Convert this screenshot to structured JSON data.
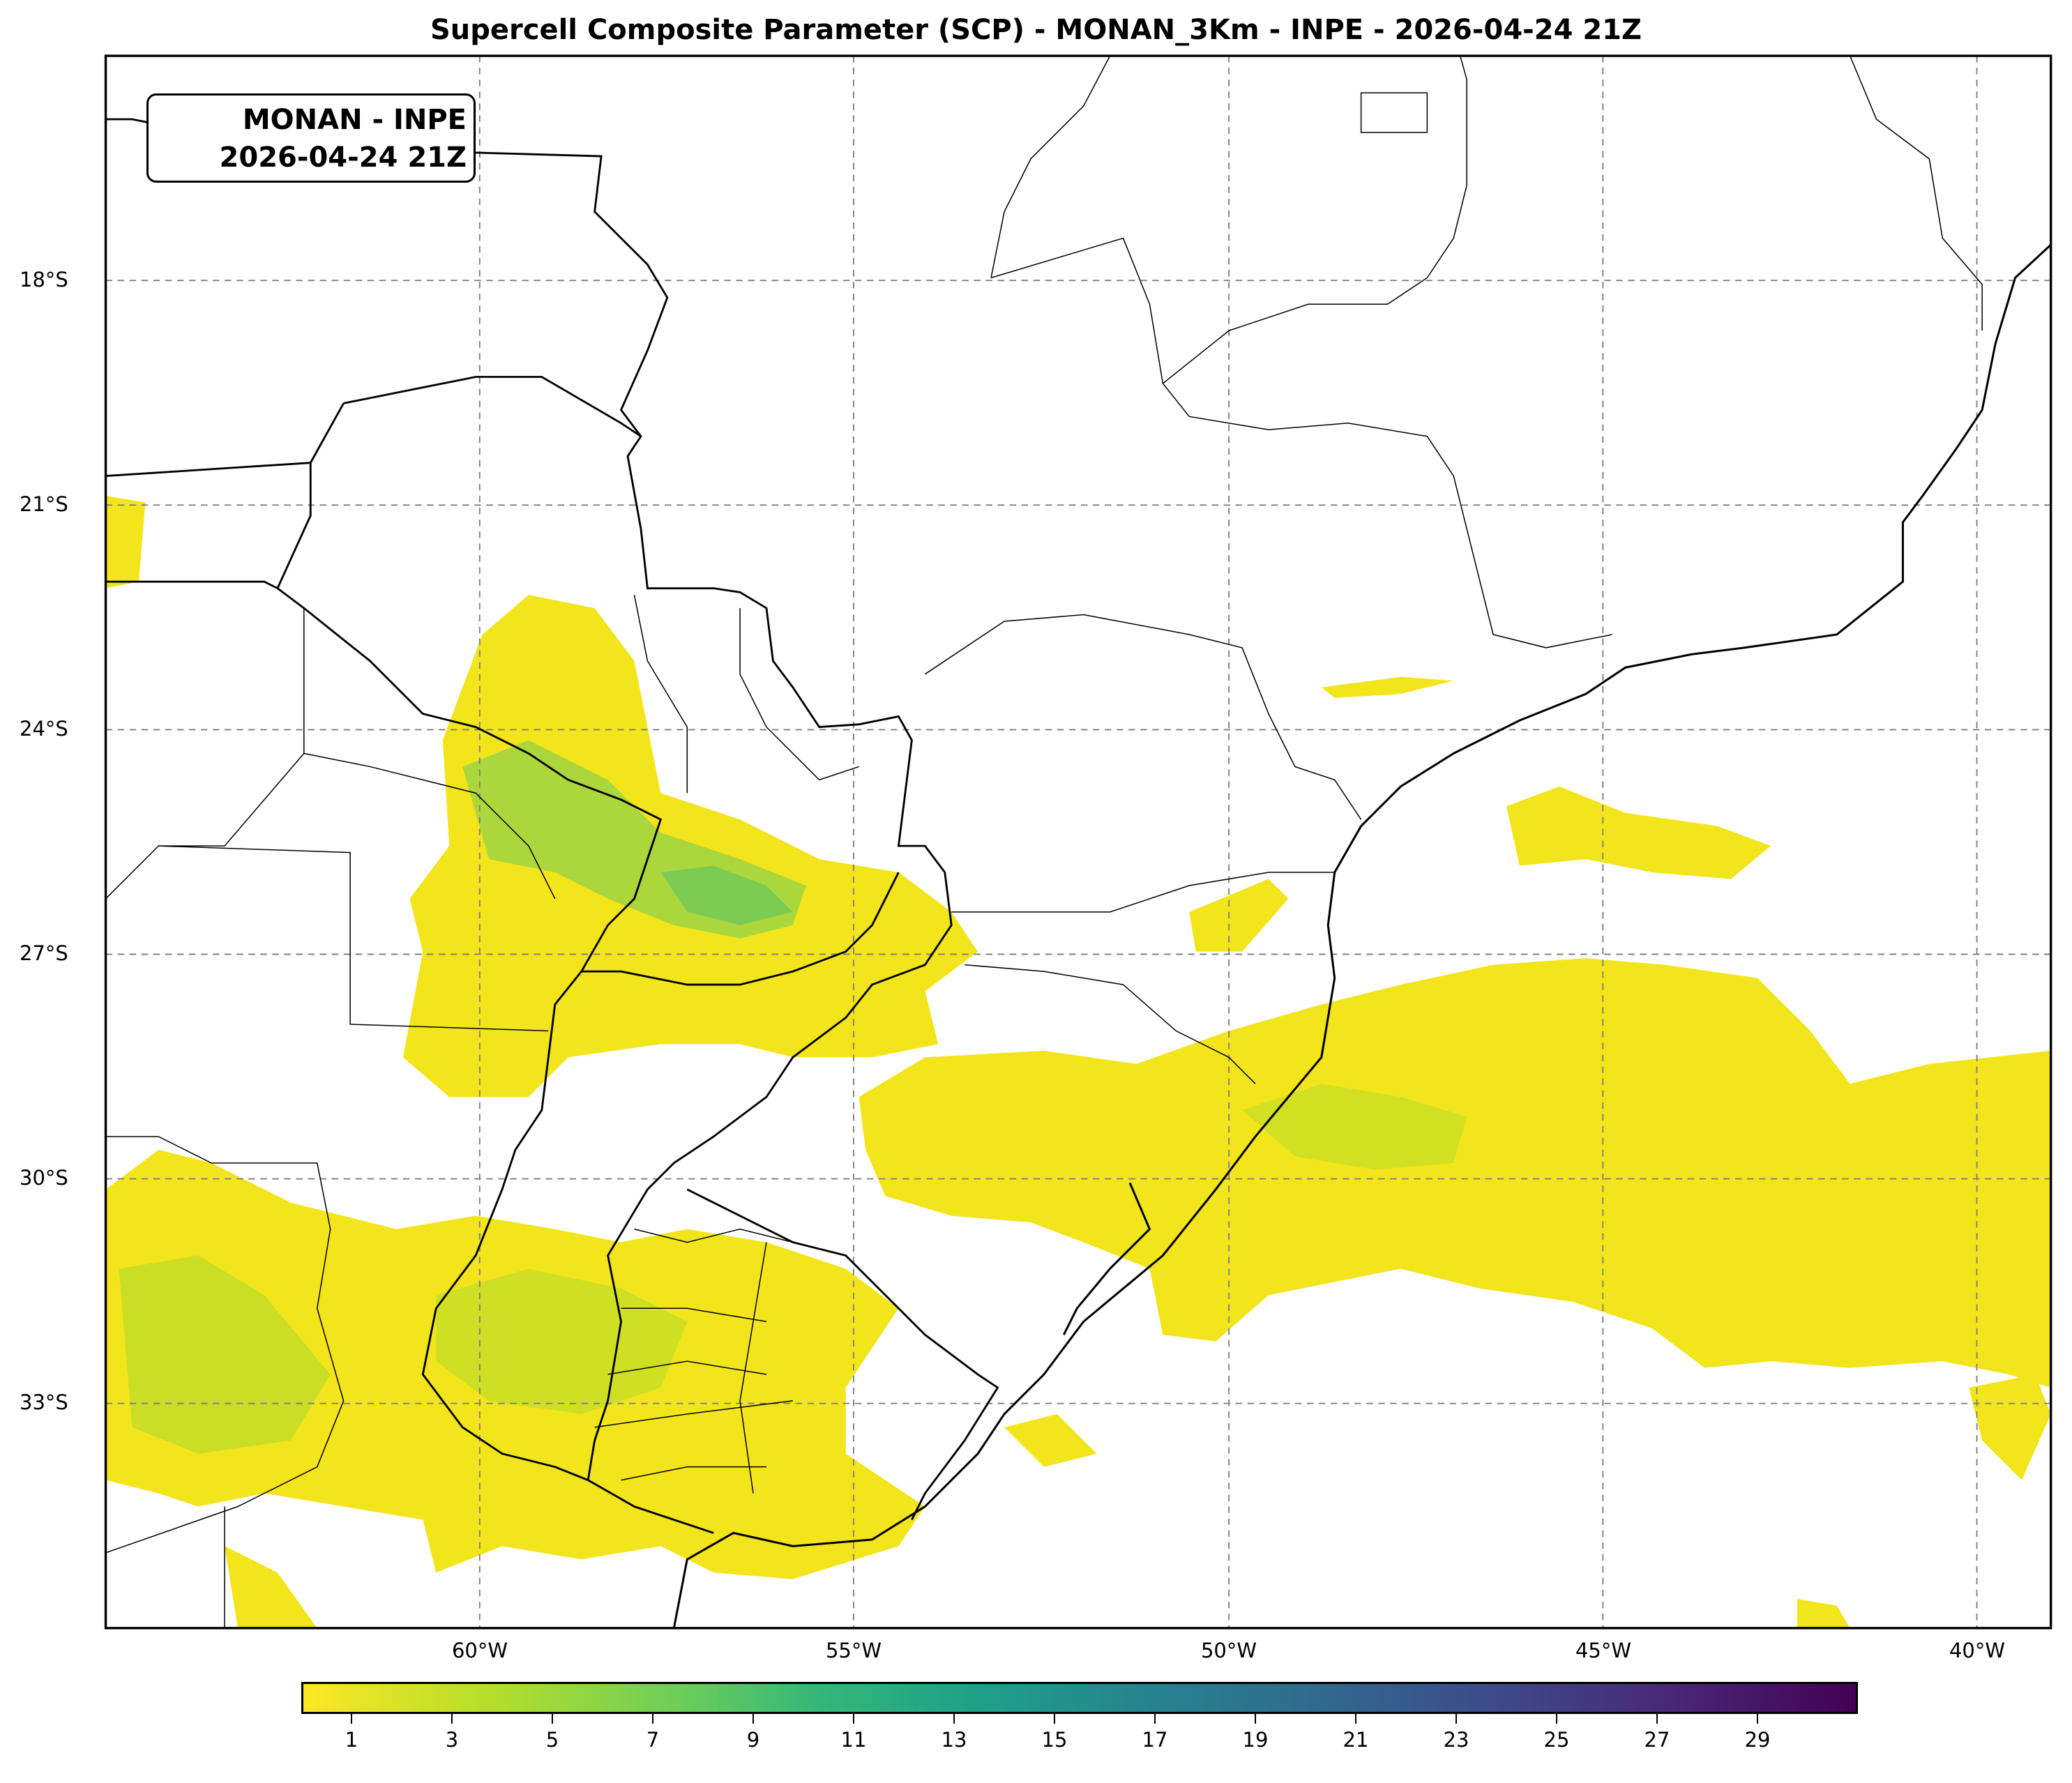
{
  "title": "Supercell Composite Parameter (SCP) - MONAN_3Km - INPE - 2026-04-24 21Z",
  "annotation": {
    "line1": "MONAN - INPE",
    "line2": "2026-04-24 21Z"
  },
  "map": {
    "extent_lon": [
      -65,
      -39
    ],
    "extent_lat": [
      -36,
      -15
    ],
    "lat_labels": [
      "18°S",
      "21°S",
      "24°S",
      "27°S",
      "30°S",
      "33°S"
    ],
    "lon_labels": [
      "60°W",
      "55°W",
      "50°W",
      "45°W",
      "40°W"
    ],
    "field_color_low": "#f2e51c",
    "field_color_mid": "#9fd83a"
  },
  "colorbar": {
    "colormap": "viridis (reversed)",
    "range": [
      0,
      31
    ],
    "ticks": [
      "1",
      "3",
      "5",
      "7",
      "9",
      "11",
      "13",
      "15",
      "17",
      "19",
      "21",
      "23",
      "25",
      "27",
      "29"
    ]
  }
}
